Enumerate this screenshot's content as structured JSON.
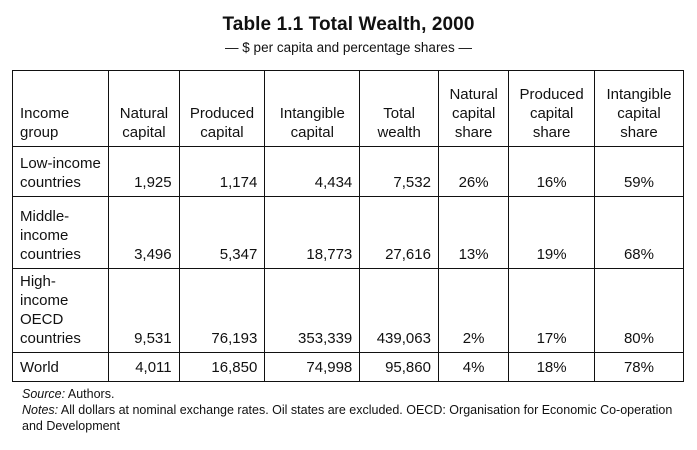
{
  "title": "Table 1.1  Total Wealth, 2000",
  "subtitle": "— $ per capita and percentage shares —",
  "table": {
    "headers": [
      "Income group",
      "Natural capital",
      "Produced capital",
      "Intangible capital",
      "Total wealth",
      "Natural capital share",
      "Produced capital share",
      "Intangible capital share"
    ],
    "rows": [
      {
        "group": "Low-income countries",
        "natural": "1,925",
        "produced": "1,174",
        "intangible": "4,434",
        "total": "7,532",
        "natural_share": "26%",
        "produced_share": "16%",
        "intangible_share": "59%"
      },
      {
        "group": "Middle-income countries",
        "natural": "3,496",
        "produced": "5,347",
        "intangible": "18,773",
        "total": "27,616",
        "natural_share": "13%",
        "produced_share": "19%",
        "intangible_share": "68%"
      },
      {
        "group": "High-income OECD countries",
        "natural": "9,531",
        "produced": "76,193",
        "intangible": "353,339",
        "total": "439,063",
        "natural_share": "2%",
        "produced_share": "17%",
        "intangible_share": "80%"
      },
      {
        "group": "World",
        "natural": "4,011",
        "produced": "16,850",
        "intangible": "74,998",
        "total": "95,860",
        "natural_share": "4%",
        "produced_share": "18%",
        "intangible_share": "78%"
      }
    ]
  },
  "source": {
    "label": "Source:",
    "text": " Authors."
  },
  "notes": {
    "label": "Notes:",
    "text": " All dollars at nominal exchange rates. Oil states are excluded. OECD: Organisation for Economic Co-operation and Development"
  }
}
